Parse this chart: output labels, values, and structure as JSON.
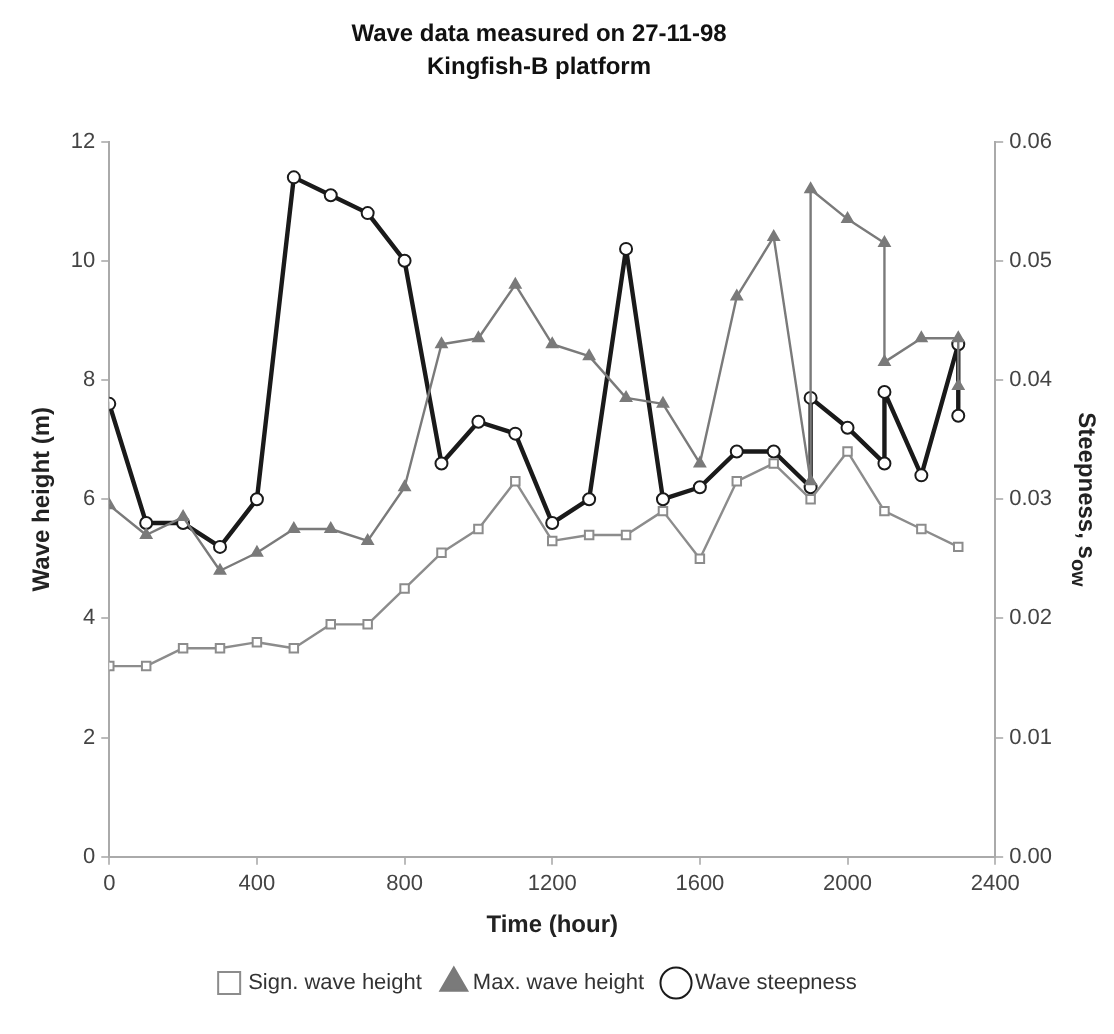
{
  "chart_data": {
    "type": "line",
    "title": "Wave data measured on 27-11-98",
    "subtitle": "Kingfish-B platform",
    "xlabel": "Time (hour)",
    "ylabel": "Wave height (m)",
    "y2label": "Steepness, s$_{ow}$",
    "xlim": [
      0,
      2400
    ],
    "xticks": [
      0,
      400,
      800,
      1200,
      1600,
      2000,
      2400
    ],
    "ylim": [
      0,
      12
    ],
    "yticks": [
      0,
      2,
      4,
      6,
      8,
      10,
      12
    ],
    "y2lim": [
      0,
      0.06
    ],
    "y2ticks": [
      {
        "value": 0,
        "label": "0.00"
      },
      0.01,
      0.02,
      0.03,
      0.04,
      0.05,
      0.06
    ],
    "grid": false,
    "legend": "bottom",
    "line_style": "solid",
    "series": [
      {
        "name": "Sign. wave height",
        "color": "#8c8c8c",
        "marker": "square",
        "x": [
          0,
          100,
          200,
          300,
          400,
          500,
          600,
          700,
          800,
          900,
          1000,
          1100,
          1200,
          1300,
          1400,
          1500,
          1600,
          1700,
          1800,
          1900,
          2000,
          2100,
          2200,
          2300
        ],
        "values": [
          3.2,
          3.2,
          3.5,
          3.5,
          3.6,
          3.5,
          3.9,
          3.9,
          4.5,
          5.1,
          5.5,
          6.3,
          5.3,
          5.4,
          5.4,
          5.8,
          5.0,
          6.3,
          6.6,
          6.0,
          6.8,
          5.8,
          5.5,
          5.2
        ]
      },
      {
        "name": "Max. wave height",
        "color": "#7a7a7a",
        "marker": "triangle",
        "x": [
          0,
          100,
          200,
          300,
          400,
          500,
          600,
          700,
          800,
          900,
          1000,
          1100,
          1200,
          1300,
          1400,
          1500,
          1600,
          1700,
          1800,
          1900,
          1900,
          2000,
          2100,
          2100,
          2200,
          2300,
          2300
        ],
        "values": [
          5.9,
          5.4,
          5.7,
          4.8,
          5.1,
          5.5,
          5.5,
          5.3,
          6.2,
          8.6,
          8.7,
          9.6,
          8.6,
          8.4,
          7.7,
          7.6,
          6.6,
          9.4,
          10.4,
          6.3,
          11.2,
          10.7,
          10.3,
          8.3,
          8.7,
          8.7,
          7.9
        ]
      },
      {
        "name": "Wave steepness",
        "color": "#1a1a1a",
        "marker": "circle",
        "axis": "y2",
        "x": [
          0,
          100,
          200,
          300,
          400,
          500,
          600,
          700,
          800,
          900,
          1000,
          1100,
          1200,
          1300,
          1400,
          1500,
          1600,
          1700,
          1800,
          1900,
          1900,
          2000,
          2100,
          2100,
          2200,
          2300,
          2300
        ],
        "values": [
          0.038,
          0.028,
          0.028,
          0.026,
          0.03,
          0.057,
          0.0555,
          0.054,
          0.05,
          0.033,
          0.0365,
          0.0355,
          0.028,
          0.03,
          0.051,
          0.03,
          0.031,
          0.034,
          0.034,
          0.031,
          0.0385,
          0.036,
          0.033,
          0.039,
          0.032,
          0.043,
          0.037
        ]
      }
    ]
  }
}
